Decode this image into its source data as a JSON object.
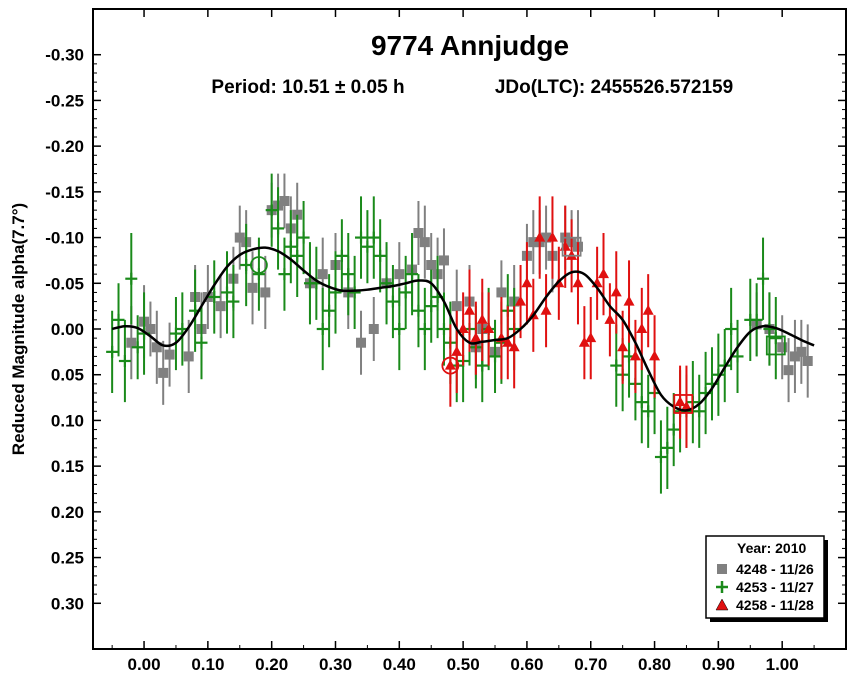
{
  "chart_data": {
    "type": "scatter",
    "title": "9774 Annjudge",
    "subtitle_period": "Period: 10.51 ± 0.05 h",
    "subtitle_epoch": "JDo(LTC): 2455526.572159",
    "ylabel": "Reduced Magnitude alpha(7.7°)",
    "xlabel": "",
    "xlim": [
      -0.08,
      1.1
    ],
    "ylim": [
      0.35,
      -0.35
    ],
    "y_inverted": true,
    "x_ticks": [
      "0.00",
      "0.10",
      "0.20",
      "0.30",
      "0.40",
      "0.50",
      "0.60",
      "0.70",
      "0.80",
      "0.90",
      "1.00"
    ],
    "x_tick_values": [
      0.0,
      0.1,
      0.2,
      0.3,
      0.4,
      0.5,
      0.6,
      0.7,
      0.8,
      0.9,
      1.0
    ],
    "y_ticks": [
      "-0.30",
      "-0.25",
      "-0.20",
      "-0.15",
      "-0.10",
      "-0.05",
      "0.00",
      "0.05",
      "0.10",
      "0.15",
      "0.20",
      "0.25",
      "0.30"
    ],
    "y_tick_values": [
      -0.3,
      -0.25,
      -0.2,
      -0.15,
      -0.1,
      -0.05,
      0.0,
      0.05,
      0.1,
      0.15,
      0.2,
      0.25,
      0.3
    ],
    "grid": false,
    "legend": {
      "placement": "bottom-right",
      "title": "Year: 2010",
      "entries": [
        {
          "label": "4248 - 11/26",
          "marker": "square",
          "color": "#808080"
        },
        {
          "label": "4253 - 11/27",
          "marker": "plus",
          "color": "#1a8a1a"
        },
        {
          "label": "4258 - 11/28",
          "marker": "triangle",
          "color": "#e01010"
        }
      ]
    },
    "fit_curve": {
      "x": [
        -0.05,
        -0.03,
        -0.01,
        0.01,
        0.03,
        0.05,
        0.07,
        0.09,
        0.11,
        0.13,
        0.15,
        0.17,
        0.19,
        0.21,
        0.23,
        0.25,
        0.27,
        0.29,
        0.31,
        0.33,
        0.35,
        0.37,
        0.39,
        0.41,
        0.43,
        0.45,
        0.47,
        0.49,
        0.51,
        0.53,
        0.55,
        0.57,
        0.59,
        0.61,
        0.63,
        0.65,
        0.67,
        0.69,
        0.71,
        0.73,
        0.75,
        0.77,
        0.79,
        0.81,
        0.83,
        0.85,
        0.87,
        0.89,
        0.91,
        0.93,
        0.95,
        0.97,
        0.99,
        1.01,
        1.03,
        1.05
      ],
      "y": [
        0.0,
        -0.003,
        -0.001,
        0.008,
        0.018,
        0.015,
        -0.002,
        -0.025,
        -0.048,
        -0.068,
        -0.081,
        -0.087,
        -0.089,
        -0.085,
        -0.076,
        -0.064,
        -0.053,
        -0.046,
        -0.042,
        -0.042,
        -0.043,
        -0.045,
        -0.047,
        -0.05,
        -0.053,
        -0.05,
        -0.03,
        0.0,
        0.015,
        0.014,
        0.012,
        0.01,
        0.0,
        -0.015,
        -0.035,
        -0.052,
        -0.062,
        -0.06,
        -0.045,
        -0.025,
        -0.01,
        0.015,
        0.045,
        0.072,
        0.085,
        0.089,
        0.082,
        0.065,
        0.042,
        0.02,
        0.003,
        -0.003,
        -0.001,
        0.005,
        0.012,
        0.018
      ]
    },
    "series": [
      {
        "name": "4248 - 11/26",
        "marker": "square",
        "color": "#808080",
        "x": [
          -0.02,
          0.0,
          0.01,
          0.02,
          0.03,
          0.04,
          0.07,
          0.08,
          0.09,
          0.1,
          0.12,
          0.14,
          0.15,
          0.16,
          0.17,
          0.19,
          0.2,
          0.21,
          0.22,
          0.23,
          0.24,
          0.26,
          0.28,
          0.3,
          0.32,
          0.34,
          0.36,
          0.38,
          0.4,
          0.42,
          0.43,
          0.44,
          0.45,
          0.46,
          0.47,
          0.49,
          0.51,
          0.52,
          0.53,
          0.55,
          0.56,
          0.58,
          0.6,
          0.61,
          0.62,
          0.63,
          0.64,
          0.66,
          0.67,
          0.68,
          0.96,
          0.98,
          1.0,
          1.01,
          1.02,
          1.03,
          1.04
        ],
        "y": [
          0.015,
          -0.008,
          0.0,
          0.02,
          0.048,
          0.028,
          0.03,
          -0.035,
          0.0,
          -0.035,
          -0.025,
          -0.055,
          -0.1,
          -0.095,
          -0.045,
          -0.04,
          -0.13,
          -0.135,
          -0.14,
          -0.11,
          -0.125,
          -0.05,
          -0.06,
          -0.07,
          -0.04,
          0.015,
          0.0,
          -0.05,
          -0.06,
          -0.065,
          -0.105,
          -0.095,
          -0.07,
          -0.06,
          -0.075,
          -0.025,
          -0.03,
          0.02,
          0.0,
          0.025,
          -0.04,
          -0.03,
          -0.08,
          -0.095,
          -0.095,
          -0.1,
          -0.08,
          -0.1,
          -0.095,
          -0.09,
          -0.005,
          0.0,
          0.02,
          0.045,
          0.03,
          0.025,
          0.035
        ],
        "err": [
          0.04,
          0.04,
          0.03,
          0.04,
          0.035,
          0.035,
          0.04,
          0.035,
          0.04,
          0.035,
          0.035,
          0.035,
          0.035,
          0.035,
          0.04,
          0.04,
          0.03,
          0.035,
          0.03,
          0.035,
          0.035,
          0.04,
          0.04,
          0.035,
          0.04,
          0.035,
          0.035,
          0.04,
          0.035,
          0.04,
          0.035,
          0.04,
          0.035,
          0.04,
          0.035,
          0.04,
          0.04,
          0.035,
          0.04,
          0.035,
          0.035,
          0.04,
          0.035,
          0.035,
          0.035,
          0.035,
          0.04,
          0.035,
          0.035,
          0.04,
          0.035,
          0.04,
          0.035,
          0.035,
          0.04,
          0.035,
          0.04
        ]
      },
      {
        "name": "4253 - 11/27",
        "marker": "plus",
        "color": "#1a8a1a",
        "x": [
          -0.05,
          -0.04,
          -0.03,
          -0.02,
          -0.01,
          0.0,
          0.05,
          0.06,
          0.08,
          0.09,
          0.11,
          0.13,
          0.14,
          0.16,
          0.18,
          0.2,
          0.21,
          0.22,
          0.23,
          0.24,
          0.25,
          0.26,
          0.27,
          0.28,
          0.29,
          0.3,
          0.31,
          0.32,
          0.33,
          0.34,
          0.35,
          0.36,
          0.37,
          0.38,
          0.39,
          0.4,
          0.41,
          0.42,
          0.43,
          0.44,
          0.45,
          0.46,
          0.47,
          0.48,
          0.49,
          0.5,
          0.51,
          0.52,
          0.53,
          0.54,
          0.55,
          0.56,
          0.57,
          0.58,
          0.74,
          0.75,
          0.76,
          0.77,
          0.78,
          0.79,
          0.8,
          0.81,
          0.82,
          0.83,
          0.84,
          0.85,
          0.86,
          0.87,
          0.88,
          0.89,
          0.9,
          0.91,
          0.92,
          0.93,
          0.95,
          0.96,
          0.97,
          0.98,
          0.99
        ],
        "y": [
          0.025,
          -0.01,
          0.035,
          -0.055,
          0.02,
          0.005,
          0.005,
          0.0,
          -0.02,
          0.015,
          -0.035,
          -0.04,
          -0.03,
          -0.07,
          -0.06,
          -0.13,
          -0.11,
          -0.06,
          -0.09,
          -0.08,
          -0.1,
          -0.05,
          -0.05,
          0.0,
          -0.02,
          -0.04,
          -0.08,
          -0.06,
          -0.04,
          -0.1,
          -0.09,
          -0.1,
          -0.08,
          -0.05,
          -0.03,
          0.0,
          -0.04,
          -0.06,
          -0.02,
          0.0,
          -0.025,
          -0.035,
          0.0,
          0.015,
          0.04,
          0.035,
          0.0,
          0.02,
          0.04,
          0.0,
          0.03,
          0.015,
          -0.02,
          0.0,
          0.04,
          0.05,
          0.03,
          0.06,
          0.08,
          0.09,
          0.07,
          0.14,
          0.13,
          0.11,
          0.09,
          0.09,
          0.08,
          0.09,
          0.07,
          0.06,
          0.05,
          0.04,
          0.0,
          0.03,
          -0.01,
          -0.01,
          -0.055,
          0.0,
          0.01
        ],
        "err": [
          0.045,
          0.04,
          0.045,
          0.05,
          0.035,
          0.045,
          0.04,
          0.04,
          0.045,
          0.04,
          0.04,
          0.045,
          0.04,
          0.045,
          0.04,
          0.04,
          0.045,
          0.04,
          0.04,
          0.045,
          0.04,
          0.045,
          0.04,
          0.045,
          0.04,
          0.045,
          0.04,
          0.045,
          0.04,
          0.045,
          0.04,
          0.045,
          0.04,
          0.045,
          0.04,
          0.045,
          0.04,
          0.045,
          0.04,
          0.045,
          0.04,
          0.045,
          0.04,
          0.045,
          0.04,
          0.045,
          0.04,
          0.045,
          0.04,
          0.045,
          0.04,
          0.045,
          0.04,
          0.045,
          0.045,
          0.04,
          0.045,
          0.04,
          0.045,
          0.04,
          0.045,
          0.04,
          0.045,
          0.04,
          0.045,
          0.04,
          0.045,
          0.04,
          0.045,
          0.04,
          0.045,
          0.04,
          0.045,
          0.04,
          0.045,
          0.04,
          0.045,
          0.04,
          0.045
        ]
      },
      {
        "name": "4258 - 11/28",
        "marker": "triangle",
        "color": "#e01010",
        "x": [
          0.48,
          0.49,
          0.5,
          0.51,
          0.52,
          0.53,
          0.54,
          0.56,
          0.57,
          0.58,
          0.59,
          0.6,
          0.61,
          0.62,
          0.63,
          0.64,
          0.65,
          0.66,
          0.67,
          0.68,
          0.69,
          0.7,
          0.71,
          0.72,
          0.73,
          0.74,
          0.75,
          0.76,
          0.77,
          0.78,
          0.79,
          0.8,
          0.84,
          0.85
        ],
        "y": [
          0.04,
          0.025,
          0.0,
          -0.02,
          0.01,
          -0.01,
          0.0,
          0.01,
          0.015,
          0.02,
          -0.03,
          -0.05,
          -0.015,
          -0.1,
          -0.02,
          -0.1,
          -0.05,
          -0.09,
          -0.08,
          -0.05,
          0.015,
          0.01,
          -0.05,
          -0.06,
          -0.01,
          -0.04,
          0.02,
          -0.03,
          0.03,
          0.0,
          -0.02,
          0.03,
          0.08,
          0.085
        ],
        "err": [
          0.045,
          0.045,
          0.04,
          0.045,
          0.04,
          0.045,
          0.04,
          0.045,
          0.04,
          0.045,
          0.04,
          0.045,
          0.04,
          0.045,
          0.04,
          0.045,
          0.04,
          0.045,
          0.04,
          0.045,
          0.04,
          0.045,
          0.04,
          0.045,
          0.04,
          0.045,
          0.04,
          0.045,
          0.04,
          0.045,
          0.04,
          0.045,
          0.04,
          0.045
        ]
      }
    ],
    "open_markers": [
      {
        "marker": "circle",
        "color": "#1a8a1a",
        "x": 0.18,
        "y": -0.07
      },
      {
        "marker": "circle",
        "color": "#e01010",
        "x": 0.48,
        "y": 0.04
      },
      {
        "marker": "square",
        "color": "#808080",
        "x": 0.67,
        "y": -0.09
      },
      {
        "marker": "square",
        "color": "#e01010",
        "x": 0.845,
        "y": 0.082
      },
      {
        "marker": "square",
        "color": "#1a8a1a",
        "x": 0.99,
        "y": 0.018
      }
    ]
  }
}
